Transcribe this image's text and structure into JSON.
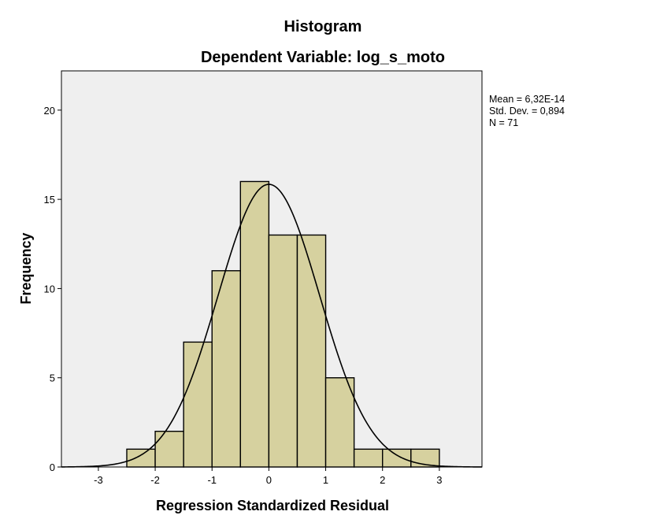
{
  "chart_data": {
    "type": "bar",
    "title": "Histogram",
    "subtitle": "Dependent Variable: log_s_moto",
    "xlabel": "Regression Standardized Residual",
    "ylabel": "Frequency",
    "bin_edges": [
      -2.5,
      -2.0,
      -1.5,
      -1.0,
      -0.5,
      0.0,
      0.5,
      1.0,
      1.5,
      2.0,
      2.5,
      3.0
    ],
    "values": [
      1,
      2,
      7,
      11,
      16,
      13,
      13,
      5,
      1,
      1,
      1
    ],
    "xlim": [
      -3.65,
      3.75
    ],
    "ylim": [
      0,
      22.2
    ],
    "xticks": [
      -3,
      -2,
      -1,
      0,
      1,
      2,
      3
    ],
    "xtick_labels": [
      "-3",
      "-2",
      "-1",
      "0",
      "1",
      "2",
      "3"
    ],
    "yticks": [
      0,
      5,
      10,
      15,
      20
    ],
    "ytick_labels": [
      "0",
      "5",
      "10",
      "15",
      "20"
    ],
    "normal_curve": {
      "mean": 6.32e-14,
      "std": 0.894,
      "n": 71,
      "bin_width": 0.5
    },
    "stats": [
      "Mean = 6,32E-14",
      "Std. Dev. = 0,894",
      "N = 71"
    ],
    "grid": false,
    "colors": {
      "bar_fill": "#d6d19f",
      "bar_stroke": "#000000",
      "plot_bg": "#efefef",
      "curve": "#000000"
    }
  }
}
